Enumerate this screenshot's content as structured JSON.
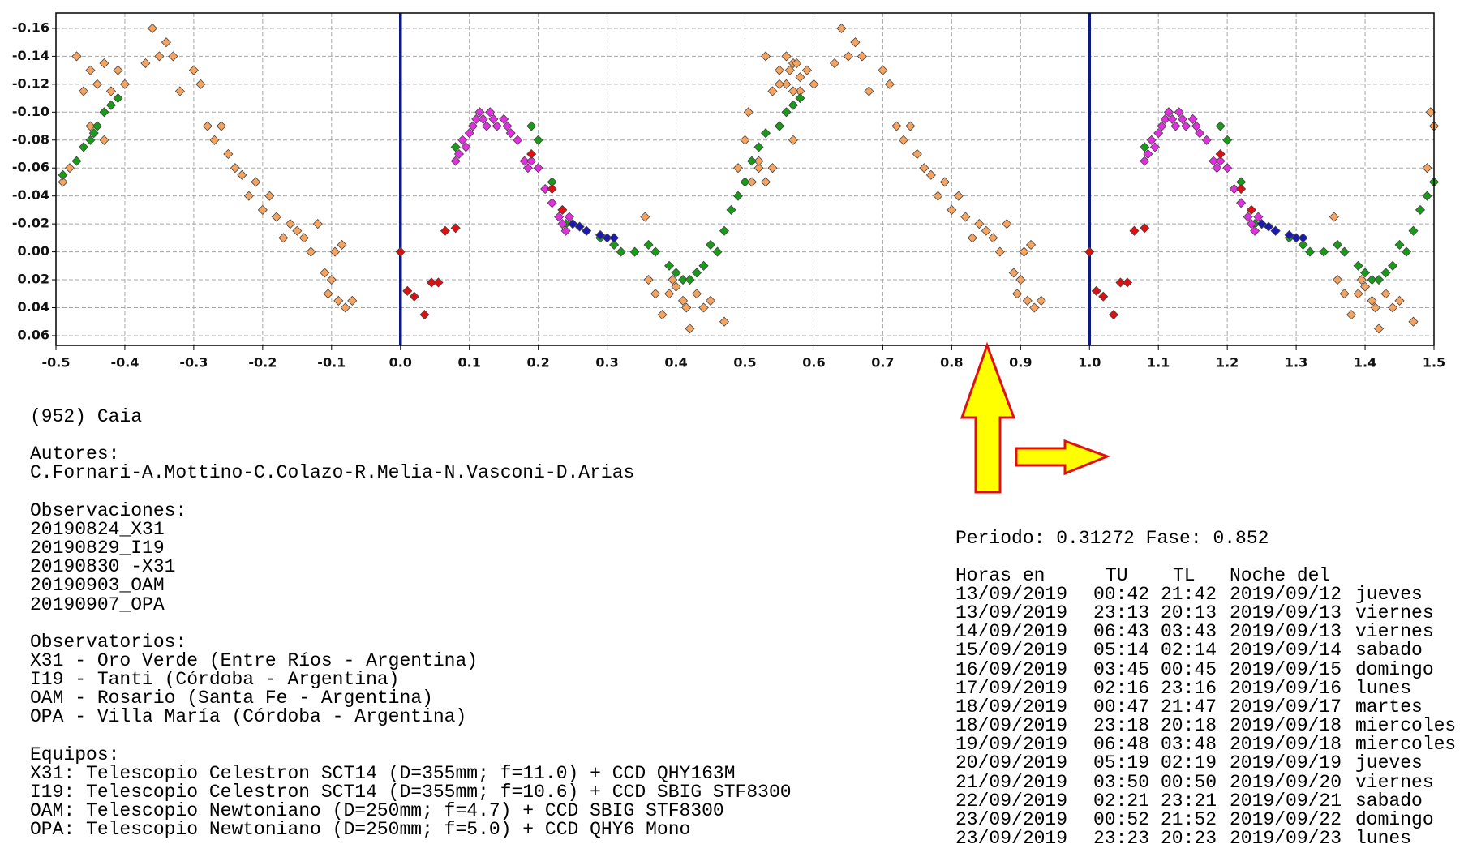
{
  "chart_data": {
    "type": "scatter",
    "xlim": [
      -0.5,
      1.5
    ],
    "ylim": [
      -0.171,
      0.067
    ],
    "y_inverted": true,
    "grid": true,
    "xticks": [
      {
        "value": -0.5,
        "label": "-0.5"
      },
      {
        "value": -0.4,
        "label": "-0.4"
      },
      {
        "value": -0.3,
        "label": "-0.3"
      },
      {
        "value": -0.2,
        "label": "-0.2"
      },
      {
        "value": -0.1,
        "label": "-0.1"
      },
      {
        "value": 0,
        "label": "0.0"
      },
      {
        "value": 0.1,
        "label": "0.1"
      },
      {
        "value": 0.2,
        "label": "0.2"
      },
      {
        "value": 0.3,
        "label": "0.3"
      },
      {
        "value": 0.4,
        "label": "0.4"
      },
      {
        "value": 0.5,
        "label": "0.5"
      },
      {
        "value": 0.6,
        "label": "0.6"
      },
      {
        "value": 0.7,
        "label": "0.7"
      },
      {
        "value": 0.8,
        "label": "0.8"
      },
      {
        "value": 0.9,
        "label": "0.9"
      },
      {
        "value": 1,
        "label": "1.0"
      },
      {
        "value": 1.1,
        "label": "1.1"
      },
      {
        "value": 1.2,
        "label": "1.2"
      },
      {
        "value": 1.3,
        "label": "1.3"
      },
      {
        "value": 1.4,
        "label": "1.4"
      },
      {
        "value": 1.5,
        "label": "1.5"
      }
    ],
    "yticks": [
      {
        "value": -0.16,
        "label": "-0.16"
      },
      {
        "value": -0.14,
        "label": "-0.14"
      },
      {
        "value": -0.12,
        "label": "-0.12"
      },
      {
        "value": -0.1,
        "label": "-0.10"
      },
      {
        "value": -0.08,
        "label": "-0.08"
      },
      {
        "value": -0.06,
        "label": "-0.06"
      },
      {
        "value": -0.04,
        "label": "-0.04"
      },
      {
        "value": -0.02,
        "label": "-0.02"
      },
      {
        "value": 0,
        "label": "0.00"
      },
      {
        "value": 0.02,
        "label": "0.02"
      },
      {
        "value": 0.04,
        "label": "0.04"
      },
      {
        "value": 0.06,
        "label": "0.06"
      }
    ],
    "vlines": [
      0,
      1
    ],
    "vline_color": "#0a1a80",
    "series": [
      {
        "color": "#f4a460",
        "x": [
          -0.49,
          -0.48,
          -0.47,
          -0.46,
          -0.45,
          -0.45,
          -0.44,
          -0.43,
          -0.42,
          -0.41,
          -0.43,
          -0.4,
          -0.37,
          -0.36,
          -0.35,
          -0.34,
          -0.33,
          -0.32,
          -0.3,
          -0.29,
          -0.28,
          -0.27,
          -0.26,
          -0.25,
          -0.24,
          -0.23,
          -0.22,
          -0.21,
          -0.2,
          -0.19,
          -0.18,
          -0.17,
          -0.16,
          -0.15,
          -0.14,
          -0.13,
          -0.12,
          -0.11,
          -0.1,
          -0.09,
          -0.08,
          -0.095,
          -0.085,
          -0.07,
          -0.105,
          0.51,
          0.52,
          0.53,
          0.54,
          0.55,
          0.55,
          0.56,
          0.57,
          0.58,
          0.59,
          0.57,
          0.6,
          0.63,
          0.64,
          0.65,
          0.66,
          0.67,
          0.68,
          0.7,
          0.71,
          0.72,
          0.73,
          0.74,
          0.75,
          0.76,
          0.77,
          0.78,
          0.79,
          0.8,
          0.81,
          0.82,
          0.83,
          0.84,
          0.85,
          0.86,
          0.87,
          0.88,
          0.89,
          0.9,
          0.91,
          0.92,
          0.905,
          0.915,
          0.93,
          0.895,
          0.355,
          0.36,
          0.37,
          0.38,
          0.39,
          0.395,
          0.4,
          0.41,
          0.415,
          0.42,
          0.43,
          0.44,
          0.45,
          0.47,
          1.355,
          1.36,
          1.37,
          1.38,
          1.39,
          1.395,
          1.4,
          1.41,
          1.415,
          1.42,
          1.43,
          1.44,
          1.45,
          1.47,
          0.49,
          0.5,
          0.505,
          0.52,
          0.53,
          0.54,
          0.55,
          0.56,
          0.565,
          0.57,
          0.575,
          0.58,
          1.49,
          1.495,
          1.5
        ],
        "values": [
          -0.05,
          -0.06,
          -0.14,
          -0.115,
          -0.13,
          -0.09,
          -0.12,
          -0.135,
          -0.115,
          -0.13,
          -0.08,
          -0.12,
          -0.135,
          -0.16,
          -0.14,
          -0.15,
          -0.14,
          -0.115,
          -0.13,
          -0.12,
          -0.09,
          -0.08,
          -0.09,
          -0.07,
          -0.06,
          -0.055,
          -0.04,
          -0.05,
          -0.03,
          -0.04,
          -0.025,
          -0.01,
          -0.02,
          -0.015,
          -0.01,
          0.0,
          -0.02,
          0.015,
          0.02,
          0.035,
          0.04,
          0.0,
          -0.005,
          0.035,
          0.03,
          -0.05,
          -0.06,
          -0.14,
          -0.115,
          -0.13,
          -0.09,
          -0.12,
          -0.135,
          -0.115,
          -0.13,
          -0.08,
          -0.12,
          -0.135,
          -0.16,
          -0.14,
          -0.15,
          -0.14,
          -0.115,
          -0.13,
          -0.12,
          -0.09,
          -0.08,
          -0.09,
          -0.07,
          -0.06,
          -0.055,
          -0.04,
          -0.05,
          -0.03,
          -0.04,
          -0.025,
          -0.01,
          -0.02,
          -0.015,
          -0.01,
          0.0,
          -0.02,
          0.015,
          0.02,
          0.035,
          0.04,
          0.0,
          -0.005,
          0.035,
          0.03,
          -0.025,
          0.02,
          0.03,
          0.045,
          0.03,
          0.02,
          0.025,
          0.035,
          0.04,
          0.055,
          0.03,
          0.04,
          0.035,
          0.05,
          -0.025,
          0.02,
          0.03,
          0.045,
          0.03,
          0.02,
          0.025,
          0.035,
          0.04,
          0.055,
          0.03,
          0.04,
          0.035,
          0.05,
          -0.06,
          -0.08,
          -0.1,
          -0.065,
          -0.05,
          -0.06,
          -0.12,
          -0.14,
          -0.13,
          -0.115,
          -0.135,
          -0.125,
          -0.06,
          -0.1,
          -0.09
        ]
      },
      {
        "color": "#1a9a1a",
        "x": [
          -0.49,
          -0.47,
          -0.46,
          -0.45,
          -0.445,
          -0.44,
          -0.43,
          -0.42,
          -0.41,
          0.08,
          0.19,
          0.2,
          0.22,
          0.24,
          0.27,
          0.29,
          0.31,
          0.32,
          0.34,
          0.36,
          0.37,
          0.39,
          0.4,
          0.41,
          0.42,
          0.43,
          0.44,
          0.45,
          0.46,
          0.47,
          0.48,
          0.49,
          0.5,
          0.51,
          0.52,
          0.53,
          0.55,
          0.56,
          0.57,
          0.58,
          1.08,
          1.19,
          1.2,
          1.22,
          1.24,
          1.27,
          1.29,
          1.31,
          1.32,
          1.34,
          1.36,
          1.37,
          1.39,
          1.4,
          1.41,
          1.42,
          1.43,
          1.44,
          1.45,
          1.46,
          1.47,
          1.48,
          1.49,
          1.5
        ],
        "values": [
          -0.055,
          -0.065,
          -0.075,
          -0.08,
          -0.085,
          -0.09,
          -0.1,
          -0.105,
          -0.11,
          -0.075,
          -0.09,
          -0.08,
          -0.05,
          -0.02,
          -0.015,
          -0.01,
          -0.005,
          0.0,
          0.0,
          -0.005,
          0.0,
          0.01,
          0.015,
          0.02,
          0.02,
          0.015,
          0.01,
          -0.005,
          0.0,
          -0.015,
          -0.03,
          -0.04,
          -0.05,
          -0.065,
          -0.075,
          -0.085,
          -0.09,
          -0.1,
          -0.105,
          -0.11,
          -0.075,
          -0.09,
          -0.08,
          -0.05,
          -0.02,
          -0.015,
          -0.01,
          -0.005,
          0.0,
          0.0,
          -0.005,
          0.0,
          0.01,
          0.015,
          0.02,
          0.02,
          0.015,
          0.01,
          -0.005,
          0.0,
          -0.015,
          -0.03,
          -0.04,
          -0.05
        ]
      },
      {
        "color": "#e030e0",
        "x": [
          0.08,
          0.085,
          0.09,
          0.095,
          0.1,
          0.105,
          0.11,
          0.115,
          0.12,
          0.125,
          0.13,
          0.135,
          0.14,
          0.15,
          0.155,
          0.16,
          0.17,
          0.18,
          0.185,
          0.19,
          0.2,
          0.21,
          0.22,
          0.23,
          0.235,
          0.24,
          0.245,
          0.25,
          1.08,
          1.085,
          1.09,
          1.095,
          1.1,
          1.105,
          1.11,
          1.115,
          1.12,
          1.125,
          1.13,
          1.135,
          1.14,
          1.15,
          1.155,
          1.16,
          1.17,
          1.18,
          1.185,
          1.19,
          1.2,
          1.21,
          1.22,
          1.23,
          1.235,
          1.24,
          1.245,
          1.25
        ],
        "values": [
          -0.065,
          -0.07,
          -0.08,
          -0.075,
          -0.085,
          -0.09,
          -0.095,
          -0.1,
          -0.095,
          -0.09,
          -0.1,
          -0.095,
          -0.09,
          -0.095,
          -0.09,
          -0.085,
          -0.08,
          -0.065,
          -0.06,
          -0.065,
          -0.06,
          -0.045,
          -0.035,
          -0.025,
          -0.02,
          -0.015,
          -0.025,
          -0.02,
          -0.065,
          -0.07,
          -0.08,
          -0.075,
          -0.085,
          -0.09,
          -0.095,
          -0.1,
          -0.095,
          -0.09,
          -0.1,
          -0.095,
          -0.09,
          -0.095,
          -0.09,
          -0.085,
          -0.08,
          -0.065,
          -0.06,
          -0.065,
          -0.06,
          -0.045,
          -0.035,
          -0.025,
          -0.02,
          -0.015,
          -0.025,
          -0.02
        ]
      },
      {
        "color": "#dd1111",
        "x": [
          0.0,
          0.01,
          0.02,
          0.035,
          0.045,
          0.055,
          0.065,
          0.08,
          0.19,
          0.22,
          0.235,
          1.0,
          1.01,
          1.02,
          1.035,
          1.045,
          1.055,
          1.065,
          1.08,
          1.19,
          1.22,
          1.235
        ],
        "values": [
          0.0,
          0.028,
          0.032,
          0.045,
          0.022,
          0.022,
          -0.015,
          -0.017,
          -0.07,
          -0.045,
          -0.03,
          0.0,
          0.028,
          0.032,
          0.045,
          0.022,
          0.022,
          -0.015,
          -0.017,
          -0.07,
          -0.045,
          -0.03
        ]
      },
      {
        "color": "#1a1ab0",
        "x": [
          0.25,
          0.26,
          0.27,
          0.29,
          0.3,
          0.31,
          1.25,
          1.26,
          1.27,
          1.29,
          1.3,
          1.31
        ],
        "values": [
          -0.02,
          -0.018,
          -0.015,
          -0.012,
          -0.01,
          -0.01,
          -0.02,
          -0.018,
          -0.015,
          -0.012,
          -0.01,
          -0.01
        ]
      }
    ]
  },
  "info": {
    "object": "(952) Caia",
    "authors_label": "Autores:",
    "authors": "C.Fornari-A.Mottino-C.Colazo-R.Melia-N.Vasconi-D.Arias",
    "observations_label": "Observaciones:",
    "observations": [
      "20190824_X31",
      "20190829_I19",
      "20190830 -X31",
      "20190903_OAM",
      "20190907_OPA"
    ],
    "observatories_label": "Observatorios:",
    "observatories": [
      "X31 - Oro Verde (Entre Ríos - Argentina)",
      "I19 - Tanti (Córdoba - Argentina)",
      "OAM - Rosario (Santa Fe - Argentina)",
      "OPA - Villa María (Córdoba - Argentina)"
    ],
    "equipment_label": "Equipos:",
    "equipment": [
      "X31: Telescopio Celestron SCT14 (D=355mm; f=11.0) + CCD QHY163M",
      "I19: Telescopio Celestron SCT14 (D=355mm; f=10.6) + CCD SBIG STF8300",
      "OAM: Telescopio Newtoniano (D=250mm; f=4.7) + CCD SBIG STF8300",
      "OPA: Telescopio Newtoniano (D=250mm; f=5.0) + CCD QHY6 Mono"
    ]
  },
  "ephemeris": {
    "period_line": "Periodo: 0.31272 Fase: 0.852",
    "header": [
      "Horas en",
      "TU",
      "TL",
      "Noche del"
    ],
    "rows": [
      [
        "13/09/2019",
        "00:42",
        "21:42",
        "2019/09/12",
        "jueves"
      ],
      [
        "13/09/2019",
        "23:13",
        "20:13",
        "2019/09/13",
        "viernes"
      ],
      [
        "14/09/2019",
        "06:43",
        "03:43",
        "2019/09/13",
        "viernes"
      ],
      [
        "15/09/2019",
        "05:14",
        "02:14",
        "2019/09/14",
        "sabado"
      ],
      [
        "16/09/2019",
        "03:45",
        "00:45",
        "2019/09/15",
        "domingo"
      ],
      [
        "17/09/2019",
        "02:16",
        "23:16",
        "2019/09/16",
        "lunes"
      ],
      [
        "18/09/2019",
        "00:47",
        "21:47",
        "2019/09/17",
        "martes"
      ],
      [
        "18/09/2019",
        "23:18",
        "20:18",
        "2019/09/18",
        "miercoles"
      ],
      [
        "19/09/2019",
        "06:48",
        "03:48",
        "2019/09/18",
        "miercoles"
      ],
      [
        "20/09/2019",
        "05:19",
        "02:19",
        "2019/09/19",
        "jueves"
      ],
      [
        "21/09/2019",
        "03:50",
        "00:50",
        "2019/09/20",
        "viernes"
      ],
      [
        "22/09/2019",
        "02:21",
        "23:21",
        "2019/09/21",
        "sabado"
      ],
      [
        "23/09/2019",
        "00:52",
        "21:52",
        "2019/09/22",
        "domingo"
      ],
      [
        "23/09/2019",
        "23:23",
        "20:23",
        "2019/09/23",
        "lunes"
      ]
    ]
  }
}
